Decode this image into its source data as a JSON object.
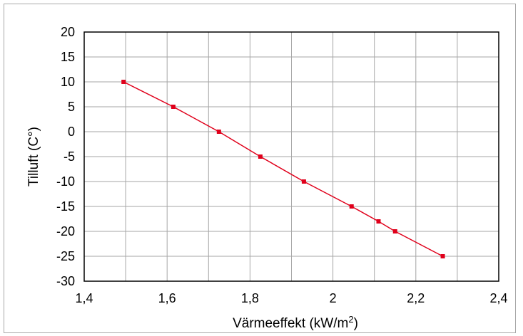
{
  "chart_data": {
    "type": "line",
    "title": "",
    "xlabel": "Värmeeffekt (kW/m",
    "xlabel_superscript": "2",
    "xlabel_suffix": ")",
    "ylabel": "Tilluft (C°)",
    "xlim": [
      1.4,
      2.4
    ],
    "ylim": [
      -30,
      20
    ],
    "x_ticks": [
      1.4,
      1.6,
      1.8,
      2.0,
      2.2,
      2.4
    ],
    "x_tick_labels": [
      "1,4",
      "1,6",
      "1,8",
      "2",
      "2,2",
      "2,4"
    ],
    "y_ticks": [
      20,
      15,
      10,
      5,
      0,
      -5,
      -10,
      -15,
      -20,
      -25,
      -30
    ],
    "y_tick_labels": [
      "20",
      "15",
      "10",
      "5",
      "0",
      "-5",
      "-10",
      "-15",
      "-20",
      "-25",
      "-30"
    ],
    "grid": true,
    "series": [
      {
        "color": "#e0001b",
        "x": [
          1.495,
          1.615,
          1.725,
          1.825,
          1.93,
          2.045,
          2.11,
          2.15,
          2.265
        ],
        "y": [
          10,
          5,
          0,
          -5,
          -10,
          -15,
          -18,
          -20,
          -25
        ]
      }
    ]
  }
}
